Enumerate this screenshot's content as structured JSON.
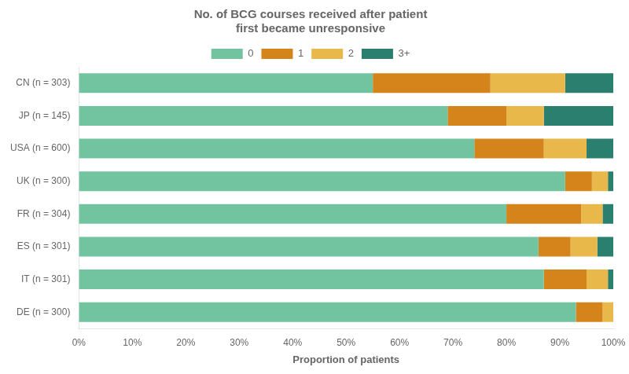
{
  "chart_data": {
    "type": "bar",
    "orientation": "horizontal",
    "stacked": true,
    "title": "No. of BCG courses received after patient\nfirst became unresponsive",
    "xlabel": "Proportion of patients",
    "categories": [
      "CN (n = 303)",
      "JP (n = 145)",
      "USA (n = 600)",
      "UK (n = 300)",
      "FR (n = 304)",
      "ES (n = 301)",
      "IT (n = 301)",
      "DE (n = 300)"
    ],
    "series": [
      {
        "name": "0",
        "color": "#72c4a0",
        "values": [
          55,
          69,
          74,
          91,
          80,
          86,
          87,
          93
        ]
      },
      {
        "name": "1",
        "color": "#d4841a",
        "values": [
          22,
          11,
          13,
          5,
          14,
          6,
          8,
          5
        ]
      },
      {
        "name": "2",
        "color": "#e8b84b",
        "values": [
          14,
          7,
          8,
          3,
          4,
          5,
          4,
          2
        ]
      },
      {
        "name": "3+",
        "color": "#2a7f6f",
        "values": [
          9,
          13,
          5,
          1,
          2,
          3,
          1,
          0
        ]
      }
    ],
    "xlim": [
      0,
      100
    ],
    "xticks": [
      {
        "value": 0,
        "label": "0%"
      },
      {
        "value": 10,
        "label": "10%"
      },
      {
        "value": 20,
        "label": "20%"
      },
      {
        "value": 30,
        "label": "30%"
      },
      {
        "value": 40,
        "label": "40%"
      },
      {
        "value": 50,
        "label": "50%"
      },
      {
        "value": 60,
        "label": "60%"
      },
      {
        "value": 70,
        "label": "70%"
      },
      {
        "value": 80,
        "label": "80%"
      },
      {
        "value": 90,
        "label": "90%"
      },
      {
        "value": 100,
        "label": "100%"
      }
    ],
    "grid": false,
    "legend": "top"
  }
}
